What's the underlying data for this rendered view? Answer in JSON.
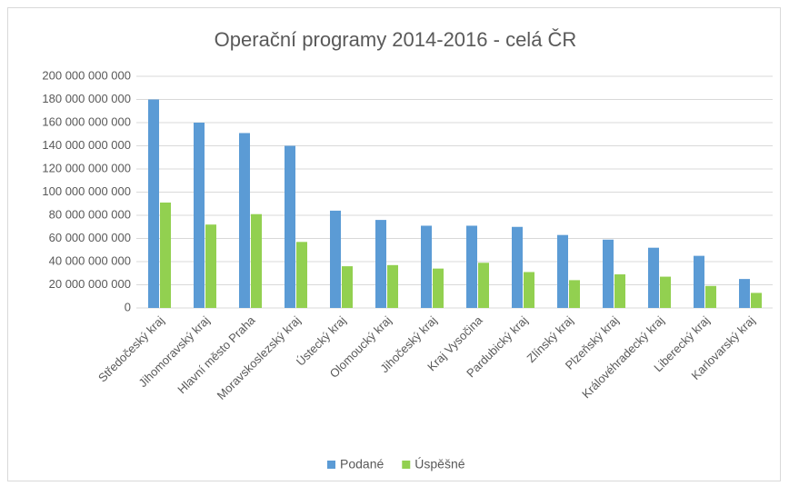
{
  "chart_data": {
    "type": "bar",
    "title": "Operační programy 2014-2016 - celá ČR",
    "categories": [
      "Středočeský kraj",
      "Jihomoravský kraj",
      "Hlavní město Praha",
      "Moravskoslezský kraj",
      "Ústecký kraj",
      "Olomoucký kraj",
      "Jihočeský kraj",
      "Kraj Vysočina",
      "Pardubický kraj",
      "Zlínský kraj",
      "Plzeňský kraj",
      "Královéhradecký kraj",
      "Liberecký kraj",
      "Karlovarský kraj"
    ],
    "series": [
      {
        "name": "Podané",
        "color": "#5b9bd5",
        "values": [
          180000000000,
          160000000000,
          151000000000,
          140000000000,
          84000000000,
          76000000000,
          71000000000,
          71000000000,
          70000000000,
          63000000000,
          59000000000,
          52000000000,
          45000000000,
          25000000000
        ]
      },
      {
        "name": "Úspěšné",
        "color": "#92d050",
        "values": [
          91000000000,
          72000000000,
          81000000000,
          57000000000,
          36000000000,
          37000000000,
          34000000000,
          39000000000,
          31000000000,
          24000000000,
          29000000000,
          27000000000,
          19000000000,
          13000000000
        ]
      }
    ],
    "ylim": [
      0,
      200000000000
    ],
    "yticks": [
      0,
      {
        "value": 20000000000,
        "label": "20 000 000 000"
      },
      {
        "value": 40000000000,
        "label": "40 000 000 000"
      },
      {
        "value": 60000000000,
        "label": "60 000 000 000"
      },
      {
        "value": 80000000000,
        "label": "80 000 000 000"
      },
      {
        "value": 100000000000,
        "label": "100 000 000 000"
      },
      {
        "value": 120000000000,
        "label": "120 000 000 000"
      },
      {
        "value": 140000000000,
        "label": "140 000 000 000"
      },
      {
        "value": 160000000000,
        "label": "160 000 000 000"
      },
      {
        "value": 180000000000,
        "label": "180 000 000 000"
      },
      {
        "value": 200000000000,
        "label": "200 000 000 000"
      }
    ],
    "grid": true,
    "legend": "bottom"
  }
}
